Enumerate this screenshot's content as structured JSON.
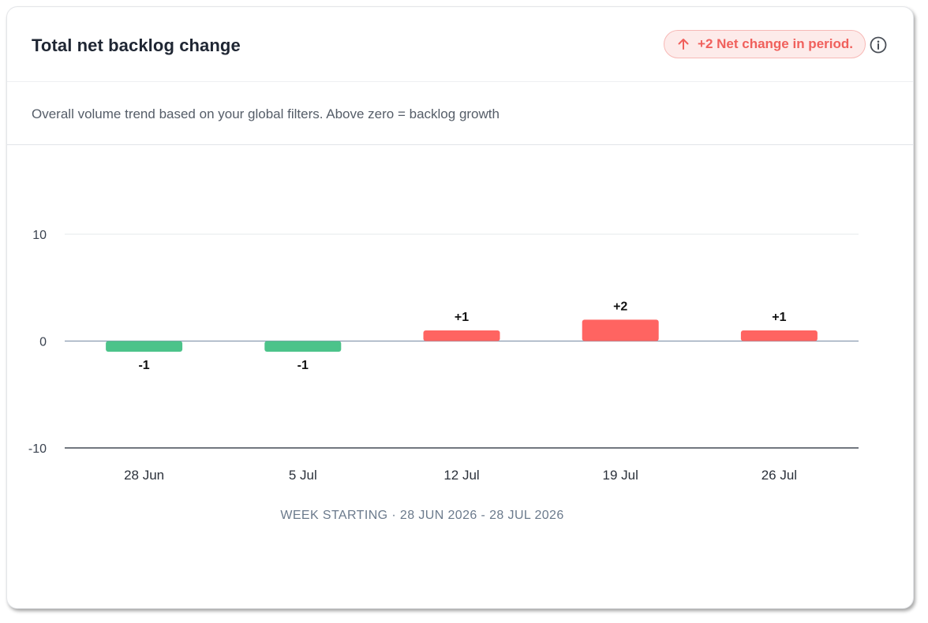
{
  "header": {
    "title": "Total net backlog change",
    "badge_text": "+2 Net change in period.",
    "badge_icon": "arrow-up-icon",
    "info_icon": "info-icon"
  },
  "subtitle": "Overall volume trend based on your global filters. Above zero = backlog growth",
  "colors": {
    "positive": "#ff6461",
    "negative": "#4cc38a",
    "badge_text": "#f0605c",
    "badge_bg": "#fdebea"
  },
  "chart_data": {
    "type": "bar",
    "categories": [
      "28 Jun",
      "5 Jul",
      "12 Jul",
      "19 Jul",
      "26 Jul"
    ],
    "values": [
      -1,
      -1,
      1,
      2,
      1
    ],
    "data_labels": [
      "-1",
      "-1",
      "+1",
      "+2",
      "+1"
    ],
    "yticks": [
      "10",
      "0",
      "-10"
    ],
    "ylim": [
      -10,
      10
    ],
    "xlabel": "WEEK STARTING · 28 JUN 2026 - 28 JUL 2026",
    "grid": true
  }
}
